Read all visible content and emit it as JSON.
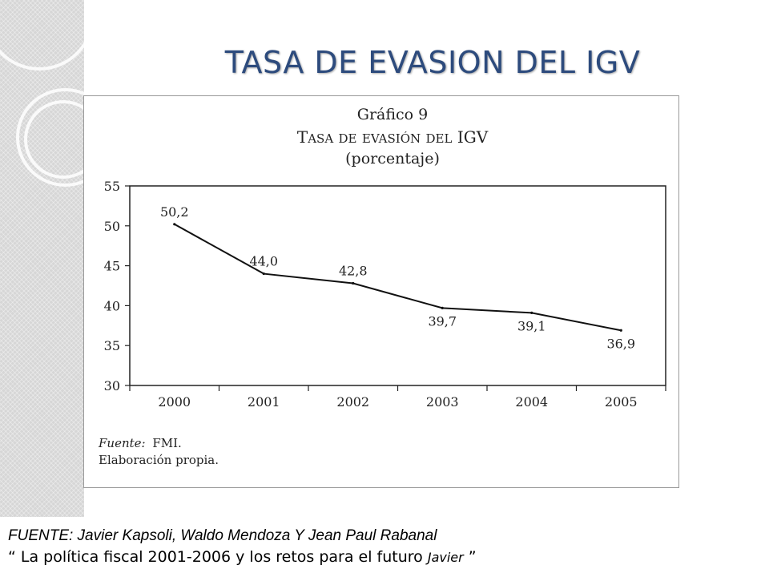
{
  "slide": {
    "title": "TASA DE EVASION DEL IGV",
    "title_color": "#2d4b7d"
  },
  "chart_data": {
    "type": "line",
    "heading": "Gráfico 9",
    "title": "Tasa de evasión del IGV",
    "subtitle": "(porcentaje)",
    "categories": [
      "2000",
      "2001",
      "2002",
      "2003",
      "2004",
      "2005"
    ],
    "values": [
      50.2,
      44.0,
      42.8,
      39.7,
      39.1,
      36.9
    ],
    "data_labels": [
      "50,2",
      "44,0",
      "42,8",
      "39,7",
      "39,1",
      "36,9"
    ],
    "yticks": [
      "55",
      "50",
      "45",
      "40",
      "35",
      "30"
    ],
    "ylim": [
      30,
      55
    ],
    "grid": false,
    "legend": "none",
    "note_source_label": "Fuente:",
    "note_source_value": "FMI.",
    "note_elab": "Elaboración propia."
  },
  "footer": {
    "source_line": "FUENTE: Javier Kapsoli, Waldo Mendoza  Y Jean Paul Rabanal",
    "ref_line": "“ La política fiscal 2001-2006 y los retos para el futuro ",
    "ref_italic": "Javier",
    "ref_close": " ”"
  }
}
